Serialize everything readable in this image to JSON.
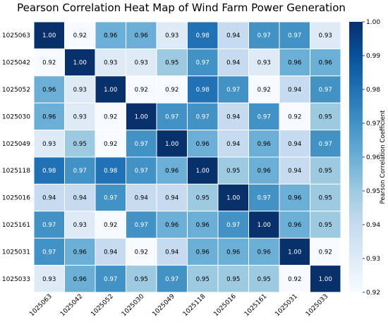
{
  "chart_data": {
    "type": "heatmap",
    "title": "Pearson Correlation Heat Map of Wind Farm Power Generation",
    "row_labels": [
      "1025063",
      "1025042",
      "1025052",
      "1025030",
      "1025049",
      "1025118",
      "1025016",
      "1025161",
      "1025031",
      "1025033"
    ],
    "col_labels": [
      "1025063",
      "1025042",
      "1025052",
      "1025030",
      "1025049",
      "1025118",
      "1025016",
      "1025161",
      "1025031",
      "1025033"
    ],
    "matrix": [
      [
        1.0,
        0.92,
        0.96,
        0.96,
        0.93,
        0.98,
        0.94,
        0.97,
        0.97,
        0.93
      ],
      [
        0.92,
        1.0,
        0.93,
        0.93,
        0.95,
        0.97,
        0.94,
        0.93,
        0.96,
        0.96
      ],
      [
        0.96,
        0.93,
        1.0,
        0.92,
        0.92,
        0.98,
        0.97,
        0.92,
        0.94,
        0.97
      ],
      [
        0.96,
        0.93,
        0.92,
        1.0,
        0.97,
        0.97,
        0.94,
        0.97,
        0.92,
        0.95
      ],
      [
        0.93,
        0.95,
        0.92,
        0.97,
        1.0,
        0.96,
        0.94,
        0.96,
        0.94,
        0.97
      ],
      [
        0.98,
        0.97,
        0.98,
        0.97,
        0.96,
        1.0,
        0.95,
        0.96,
        0.94,
        0.95
      ],
      [
        0.94,
        0.94,
        0.97,
        0.94,
        0.94,
        0.95,
        1.0,
        0.97,
        0.96,
        0.95
      ],
      [
        0.97,
        0.93,
        0.92,
        0.97,
        0.96,
        0.96,
        0.97,
        1.0,
        0.96,
        0.95
      ],
      [
        0.97,
        0.96,
        0.94,
        0.92,
        0.94,
        0.96,
        0.96,
        0.96,
        1.0,
        0.92
      ],
      [
        0.93,
        0.96,
        0.97,
        0.95,
        0.97,
        0.95,
        0.95,
        0.95,
        0.92,
        1.0
      ]
    ],
    "value_format": "2 decimals",
    "colorbar": {
      "label": "Pearson Correlation Coefficient",
      "range": [
        0.92,
        1.0
      ],
      "ticks": [
        "1.00",
        "0.99",
        "0.98",
        "0.97",
        "0.96",
        "0.95",
        "0.94",
        "0.93",
        "0.92"
      ]
    },
    "colormap": [
      "#f7fbff",
      "#deebf7",
      "#c6dbef",
      "#9ecae1",
      "#6baed6",
      "#4292c6",
      "#2171b5",
      "#08519c",
      "#08306b"
    ]
  }
}
